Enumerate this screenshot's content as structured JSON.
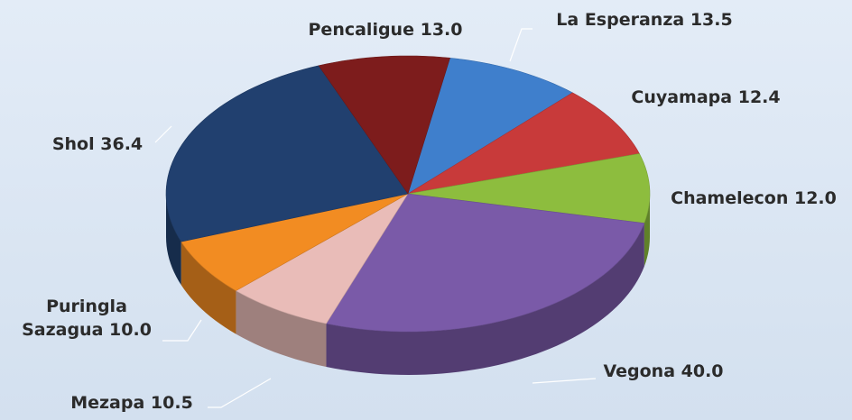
{
  "chart_data": {
    "type": "pie3d",
    "categories": [
      "La Esperanza",
      "Cuyamapa",
      "Chamelecon",
      "Vegona",
      "Mezapa",
      "Puringla Sazagua",
      "Shol",
      "Pencaligue"
    ],
    "values": [
      13.5,
      12.4,
      12.0,
      40.0,
      10.5,
      10.0,
      36.4,
      13.0
    ],
    "value_labels": [
      "13.5",
      "12.4",
      "12.0",
      "40.0",
      "10.5",
      "10.0",
      "36.4",
      "13.0"
    ],
    "colors": [
      "#3f7fcc",
      "#c83a3a",
      "#8dbd3e",
      "#7a5aa8",
      "#e9bcb8",
      "#f28c22",
      "#21406f",
      "#7d1c1c"
    ]
  }
}
